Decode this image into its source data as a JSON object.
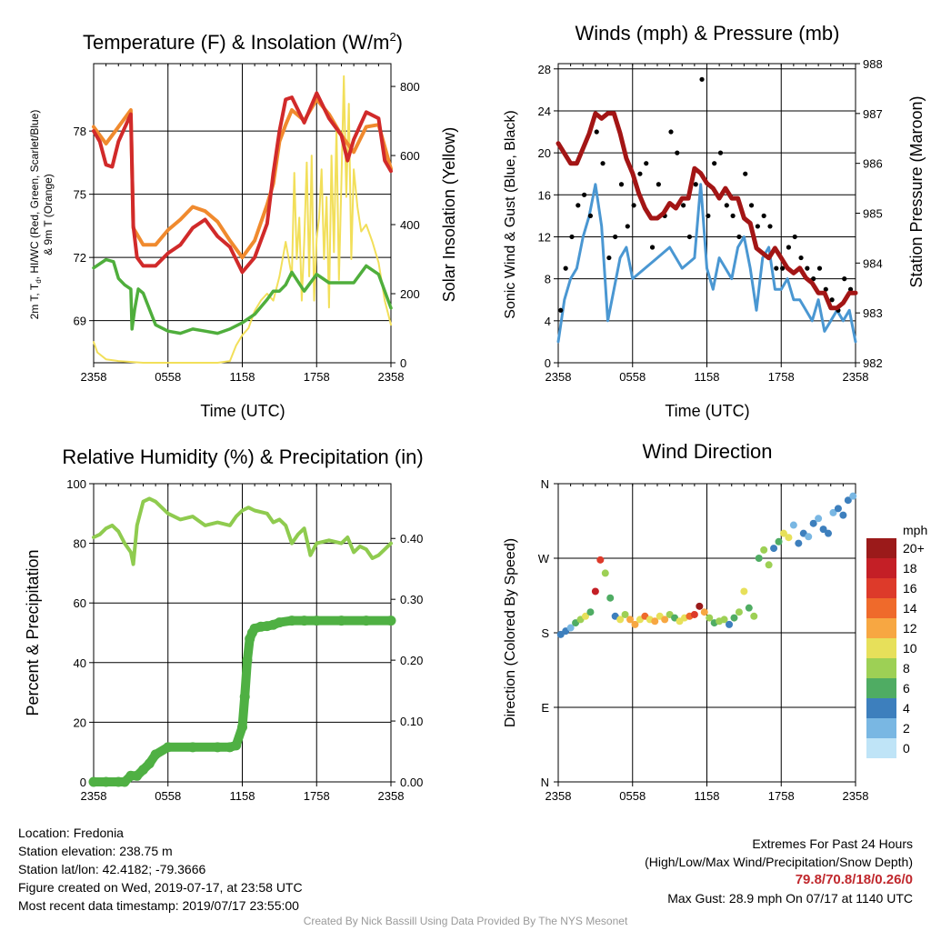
{
  "colors": {
    "red": "#d12a2a",
    "orange": "#f08a2e",
    "green": "#4fae3c",
    "yellow": "#f2df5a",
    "blue": "#4a97d2",
    "black": "#000000",
    "maroon": "#a31515",
    "rh_line": "#8fcb4f",
    "precip": "#4fb043"
  },
  "panels": {
    "temperature": {
      "title": "Temperature (F) & Insolation (W/m",
      "title_sup": "2",
      "title_close": ")",
      "ylabel_left_line1": "2m T, T",
      "ylabel_left_sub": "d",
      "ylabel_left_line1b": ", HI/WC (Red, Green, Scarlet/Blue)",
      "ylabel_left_line2": "& 9m T (Orange)",
      "ylabel_right": "Solar Insolation (Yellow)",
      "xlabel": "Time (UTC)",
      "xticks": [
        "2358",
        "0558",
        "1158",
        "1758",
        "2358"
      ],
      "yticks_left": [
        "69",
        "72",
        "75",
        "78"
      ],
      "yticks_right": [
        "0",
        "200",
        "400",
        "600",
        "800"
      ]
    },
    "winds": {
      "title": "Winds (mph) & Pressure (mb)",
      "ylabel_left": "Sonic Wind & Gust (Blue, Black)",
      "ylabel_right": "Station Pressure (Maroon)",
      "xlabel": "Time (UTC)",
      "xticks": [
        "2358",
        "0558",
        "1158",
        "1758",
        "2358"
      ],
      "yticks_left": [
        "0",
        "4",
        "8",
        "12",
        "16",
        "20",
        "24",
        "28"
      ],
      "yticks_right": [
        "982",
        "983",
        "984",
        "985",
        "986",
        "987",
        "988"
      ]
    },
    "humidity": {
      "title": "Relative Humidity (%) & Precipitation (in)",
      "ylabel_left": "Percent & Precipitation",
      "xticks": [
        "2358",
        "0558",
        "1158",
        "1758",
        "2358"
      ],
      "yticks_left": [
        "0",
        "20",
        "40",
        "60",
        "80",
        "100"
      ],
      "yticks_right": [
        "0.00",
        "0.10",
        "0.20",
        "0.30",
        "0.40"
      ]
    },
    "direction": {
      "title": "Wind Direction",
      "ylabel_left": "Direction (Colored By Speed)",
      "xticks": [
        "2358",
        "0558",
        "1158",
        "1758",
        "2358"
      ],
      "yticks_left": [
        "N",
        "E",
        "S",
        "W",
        "N"
      ],
      "legend_title": "mph",
      "legend_labels": [
        "20+",
        "18",
        "16",
        "14",
        "12",
        "10",
        "8",
        "6",
        "4",
        "2",
        "0"
      ],
      "legend_colors": [
        "#9b1a1a",
        "#c41f26",
        "#dd3a2a",
        "#ef6a2b",
        "#f7a742",
        "#e7e05a",
        "#9dd055",
        "#4fac63",
        "#3d7fbd",
        "#79b7e3",
        "#bfe4f7"
      ]
    }
  },
  "chart_data": [
    {
      "type": "line",
      "title": "Temperature (F) & Insolation (W/m2)",
      "xlabel": "Time (UTC)",
      "xlim": [
        0,
        24
      ],
      "ylim_left": [
        67,
        81.2
      ],
      "ylim_right": [
        0,
        866
      ],
      "series": [
        {
          "axis": "left",
          "color": "#f08a2e",
          "x": [
            0,
            1,
            2,
            3,
            3.2,
            4,
            5,
            6,
            7,
            8,
            9,
            10,
            11,
            12,
            13,
            14,
            14.5,
            15,
            15.5,
            16,
            17,
            18,
            19,
            20,
            21,
            22,
            23,
            24
          ],
          "y": [
            78.2,
            77.4,
            78.2,
            79.0,
            73.4,
            72.6,
            72.6,
            73.3,
            73.8,
            74.4,
            74.2,
            73.7,
            72.8,
            72.0,
            72.8,
            74.5,
            75.5,
            77.5,
            78.3,
            79.0,
            78.5,
            79.5,
            78.8,
            77.8,
            77.0,
            78.2,
            78.3,
            76.2
          ]
        },
        {
          "axis": "left",
          "color": "#d12a2a",
          "x": [
            0,
            0.5,
            1,
            1.5,
            2,
            3,
            3.2,
            3.5,
            4,
            5,
            6,
            7,
            8,
            9,
            10,
            11,
            12,
            13,
            14,
            14.5,
            15,
            15.5,
            16,
            17,
            18,
            19,
            20,
            20.5,
            21,
            22,
            23,
            23.5,
            24
          ],
          "y": [
            78.0,
            77.5,
            76.4,
            76.3,
            77.5,
            78.8,
            73.5,
            72.0,
            71.6,
            71.6,
            72.2,
            72.6,
            73.4,
            73.8,
            73.0,
            72.5,
            71.3,
            72.0,
            73.6,
            76.0,
            78.0,
            79.5,
            79.6,
            78.4,
            79.8,
            78.6,
            77.8,
            76.6,
            77.6,
            78.9,
            78.6,
            76.6,
            76.1
          ]
        },
        {
          "axis": "left",
          "color": "#4fae3c",
          "x": [
            0,
            1,
            1.6,
            2,
            2.5,
            3,
            3.1,
            3.3,
            3.6,
            4,
            5,
            6,
            7,
            8,
            9,
            10,
            11,
            12,
            13,
            14,
            14.5,
            15,
            15.5,
            16,
            17,
            18,
            19,
            20,
            21,
            22,
            23,
            23.5,
            24
          ],
          "y": [
            71.5,
            71.9,
            71.8,
            71.0,
            70.7,
            70.5,
            68.6,
            69.5,
            70.5,
            70.3,
            68.8,
            68.5,
            68.4,
            68.6,
            68.5,
            68.4,
            68.6,
            68.9,
            69.3,
            70.0,
            70.4,
            70.4,
            70.7,
            71.3,
            70.4,
            71.2,
            70.8,
            70.8,
            70.8,
            71.6,
            71.2,
            70.4,
            69.6
          ]
        },
        {
          "axis": "right",
          "color": "#f2df5a",
          "x": [
            0,
            0.3,
            1,
            2,
            4,
            6,
            8,
            10,
            11,
            11.5,
            12,
            12.5,
            13,
            13.5,
            14,
            14.5,
            15,
            15.5,
            16,
            16.2,
            16.4,
            16.6,
            16.8,
            17,
            17.2,
            17.4,
            17.6,
            17.8,
            18,
            18.2,
            18.4,
            18.6,
            18.8,
            19,
            19.2,
            19.4,
            19.6,
            19.8,
            20,
            20.2,
            20.4,
            20.6,
            20.8,
            21,
            21.3,
            21.6,
            22,
            22.5,
            23,
            23.5,
            24
          ],
          "y": [
            60,
            30,
            10,
            5,
            0,
            0,
            0,
            0,
            5,
            50,
            80,
            100,
            150,
            180,
            200,
            180,
            250,
            350,
            250,
            550,
            300,
            420,
            180,
            350,
            580,
            250,
            600,
            180,
            360,
            420,
            560,
            300,
            480,
            160,
            600,
            320,
            680,
            240,
            520,
            830,
            480,
            750,
            300,
            560,
            450,
            380,
            400,
            350,
            290,
            180,
            110
          ]
        }
      ]
    },
    {
      "type": "line",
      "title": "Winds (mph) & Pressure (mb)",
      "xlabel": "Time (UTC)",
      "xlim": [
        0,
        24
      ],
      "ylim_left": [
        0,
        28.5
      ],
      "ylim_right": [
        982,
        988
      ],
      "series": [
        {
          "axis": "left",
          "color": "#4a97d2",
          "x": [
            0,
            0.5,
            1,
            1.5,
            2,
            2.5,
            3,
            3.5,
            4,
            4.5,
            5,
            5.5,
            6,
            7,
            8,
            9,
            10,
            11,
            11.5,
            12,
            12.5,
            13,
            14,
            14.5,
            15,
            15.5,
            16,
            16.5,
            17,
            17.5,
            18,
            18.5,
            19,
            19.5,
            20,
            20.5,
            21,
            21.5,
            22,
            22.5,
            23,
            23.5,
            24
          ],
          "y": [
            2,
            6,
            8,
            9,
            12,
            14,
            17,
            13,
            4,
            7,
            10,
            11,
            8,
            9,
            10,
            11,
            9,
            10,
            17,
            9,
            7,
            10,
            8,
            11,
            12,
            9,
            5,
            10,
            11,
            7,
            7,
            8,
            6,
            6,
            5,
            4,
            6,
            3,
            4,
            5,
            4,
            5,
            2
          ]
        },
        {
          "axis": "left",
          "color": "#000000",
          "type": "scatter",
          "x": [
            0.2,
            0.6,
            1.1,
            1.6,
            2.1,
            2.6,
            3.1,
            3.6,
            4.1,
            4.6,
            5.1,
            5.6,
            6.1,
            6.6,
            7.1,
            7.6,
            8.1,
            8.6,
            9.1,
            9.6,
            10.1,
            10.6,
            11.1,
            11.6,
            12.1,
            12.6,
            13.1,
            13.6,
            14.1,
            14.6,
            15.1,
            15.6,
            16.1,
            16.6,
            17.1,
            17.6,
            18.1,
            18.6,
            19.1,
            19.6,
            20.1,
            20.6,
            21.1,
            21.6,
            22.1,
            22.6,
            23.1,
            23.6
          ],
          "y": [
            5,
            9,
            12,
            15,
            16,
            14,
            22,
            19,
            10,
            12,
            17,
            13,
            15,
            18,
            19,
            11,
            17,
            14,
            22,
            20,
            15,
            12,
            17,
            27,
            14,
            19,
            20,
            15,
            14,
            12,
            18,
            15,
            13,
            14,
            13,
            9,
            9,
            11,
            12,
            10,
            9,
            8,
            9,
            7,
            6,
            5,
            8,
            7
          ]
        },
        {
          "axis": "right",
          "color": "#a31515",
          "x": [
            0,
            0.5,
            1,
            1.5,
            2,
            2.5,
            3,
            3.5,
            4,
            4.5,
            5,
            5.5,
            6,
            6.5,
            7,
            7.5,
            8,
            8.5,
            9,
            9.5,
            10,
            10.5,
            11,
            11.5,
            12,
            12.5,
            13,
            13.5,
            14,
            14.5,
            15,
            15.5,
            16,
            16.5,
            17,
            17.5,
            18,
            18.5,
            19,
            19.5,
            20,
            20.5,
            21,
            21.5,
            22,
            22.5,
            23,
            23.5,
            24
          ],
          "y": [
            986.4,
            986.2,
            986.0,
            986.0,
            986.3,
            986.6,
            987.0,
            986.9,
            987.0,
            987.0,
            986.6,
            986.1,
            985.8,
            985.4,
            985.1,
            984.9,
            984.9,
            985.0,
            985.2,
            985.1,
            985.3,
            985.3,
            985.9,
            985.8,
            985.6,
            985.5,
            985.3,
            985.5,
            985.3,
            985.3,
            984.9,
            984.8,
            984.3,
            984.2,
            984.1,
            984.3,
            984.1,
            983.9,
            983.8,
            983.9,
            983.7,
            983.6,
            983.4,
            983.4,
            983.1,
            983.1,
            983.2,
            983.4,
            983.4
          ]
        }
      ]
    },
    {
      "type": "line",
      "title": "Relative Humidity (%) & Precipitation (in)",
      "xlim": [
        0,
        24
      ],
      "ylim_left": [
        0,
        100
      ],
      "ylim_right": [
        0,
        0.49
      ],
      "series": [
        {
          "axis": "left",
          "color": "#8fcb4f",
          "x": [
            0,
            0.5,
            1,
            1.5,
            2,
            2.5,
            3,
            3.2,
            3.5,
            4,
            4.5,
            5,
            6,
            7,
            8,
            9,
            10,
            11,
            11.5,
            12,
            12.5,
            13,
            14,
            14.5,
            15,
            15.5,
            16,
            16.5,
            17,
            17.5,
            18,
            19,
            20,
            20.5,
            21,
            21.5,
            22,
            22.5,
            23,
            23.5,
            24
          ],
          "y": [
            82,
            83,
            85,
            86,
            84,
            80,
            77,
            73,
            86,
            94,
            95,
            94,
            90,
            88,
            89,
            86,
            87,
            86,
            89,
            91,
            92,
            91,
            90,
            87,
            88,
            86,
            80,
            83,
            85,
            76,
            80,
            81,
            80,
            82,
            77,
            79,
            78,
            75,
            76,
            78,
            80
          ]
        },
        {
          "axis": "right",
          "color": "#4fb043",
          "x": [
            0,
            1,
            2,
            2.5,
            3,
            3.5,
            4,
            4.5,
            5,
            6,
            8,
            10,
            11,
            11.5,
            12,
            12.2,
            12.4,
            12.6,
            12.8,
            13,
            13.5,
            14,
            14.5,
            15,
            16,
            17,
            18,
            20,
            22,
            24
          ],
          "y": [
            0.0,
            0.0,
            0.0,
            0.0,
            0.01,
            0.01,
            0.02,
            0.03,
            0.045,
            0.057,
            0.057,
            0.057,
            0.057,
            0.06,
            0.09,
            0.14,
            0.2,
            0.235,
            0.245,
            0.252,
            0.255,
            0.256,
            0.258,
            0.262,
            0.265,
            0.265,
            0.265,
            0.265,
            0.265,
            0.265
          ]
        }
      ]
    },
    {
      "type": "scatter",
      "title": "Wind Direction",
      "xlim": [
        0,
        24
      ],
      "ylim": [
        0,
        360
      ],
      "x": [
        0.2,
        0.6,
        1,
        1.4,
        1.8,
        2.2,
        2.6,
        3,
        3.4,
        3.8,
        4.2,
        4.6,
        5,
        5.4,
        5.8,
        6.2,
        6.6,
        7,
        7.4,
        7.8,
        8.2,
        8.6,
        9,
        9.4,
        9.8,
        10.2,
        10.6,
        11,
        11.4,
        11.8,
        12.2,
        12.6,
        13,
        13.4,
        13.8,
        14.2,
        14.6,
        15,
        15.4,
        15.8,
        16.2,
        16.6,
        17,
        17.4,
        17.8,
        18.2,
        18.6,
        19,
        19.4,
        19.8,
        20.2,
        20.6,
        21,
        21.4,
        21.8,
        22.2,
        22.6,
        23,
        23.4,
        23.8
      ],
      "y": [
        178,
        182,
        186,
        192,
        196,
        200,
        205,
        230,
        268,
        252,
        222,
        200,
        196,
        202,
        196,
        190,
        196,
        200,
        196,
        194,
        200,
        196,
        202,
        198,
        194,
        198,
        200,
        202,
        212,
        205,
        198,
        192,
        194,
        196,
        190,
        198,
        205,
        230,
        210,
        200,
        270,
        280,
        262,
        282,
        290,
        300,
        295,
        310,
        288,
        300,
        296,
        312,
        318,
        305,
        300,
        325,
        330,
        322,
        340,
        345
      ],
      "c": [
        4,
        3,
        2,
        6,
        8,
        10,
        6,
        18,
        16,
        8,
        6,
        4,
        10,
        8,
        12,
        11,
        10,
        14,
        9,
        12,
        10,
        11,
        8,
        6,
        9,
        10,
        14,
        16,
        20,
        12,
        8,
        6,
        7,
        8,
        4,
        6,
        8,
        10,
        6,
        8,
        6,
        8,
        7,
        4,
        6,
        9,
        10,
        2,
        4,
        3,
        2,
        4,
        2,
        3,
        4,
        2,
        3,
        4,
        3,
        2
      ]
    }
  ],
  "footer": {
    "location": "Location: Fredonia",
    "elevation": "Station elevation: 238.75 m",
    "latlon": "Station lat/lon: 42.4182; -79.3666",
    "created": "Figure created on Wed, 2019-07-17, at 23:58 UTC",
    "recent": "Most recent data timestamp: 2019/07/17 23:55:00",
    "extremes_title": "Extremes For Past 24 Hours",
    "extremes_legend": "(High/Low/Max Wind/Precipitation/Snow Depth)",
    "extremes_values": "79.8/70.8/18/0.26/0",
    "max_gust": "Max Gust: 28.9 mph On 07/17 at 1140 UTC",
    "credit": "Created By Nick Bassill Using Data Provided By The NYS Mesonet"
  }
}
